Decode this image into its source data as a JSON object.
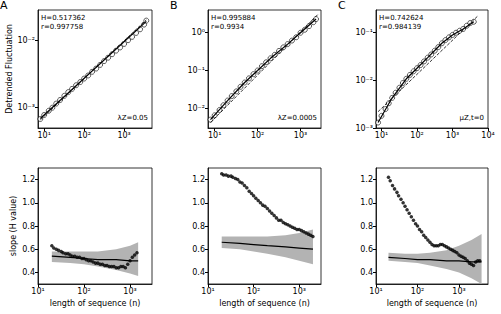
{
  "chart_data": [
    {
      "type": "scatter",
      "title": "A",
      "ylabel": "Detrended Fluctuation",
      "annotations": {
        "top_left": [
          "H=0.517362",
          "r=0.997758"
        ],
        "bottom_right": "λZ=0.05"
      },
      "log": true,
      "grid": false,
      "xlim": [
        7,
        5000
      ],
      "ylim": [
        0.0005,
        0.028
      ],
      "xticks": [
        {
          "value": 10,
          "label": "10¹"
        },
        {
          "value": 100,
          "label": "10²"
        },
        {
          "value": 1000,
          "label": "10³"
        }
      ],
      "yticks": [
        {
          "value": 0.001,
          "label": "10⁻³"
        },
        {
          "value": 0.01,
          "label": "10⁻²"
        }
      ],
      "series": [
        {
          "type": "line",
          "line_style": "dashed",
          "color": "#000000",
          "x": [
            8,
            3600
          ],
          "values": [
            0.00066,
            0.02
          ]
        },
        {
          "type": "line",
          "line_style": "solid",
          "color": "#000000",
          "x": [
            8,
            3600
          ],
          "values": [
            0.00069,
            0.019
          ]
        },
        {
          "type": "scatter",
          "marker": "circle_open",
          "color": "#000000",
          "x": [
            8,
            10,
            13,
            16,
            20,
            25,
            32,
            40,
            50,
            63,
            80,
            100,
            126,
            158,
            200,
            251,
            316,
            398,
            501,
            631,
            794,
            1000,
            1259,
            1585,
            1995,
            2512,
            3162,
            3600
          ],
          "values": [
            0.00068,
            0.00078,
            0.0009,
            0.001,
            0.00115,
            0.0013,
            0.0015,
            0.0017,
            0.0019,
            0.00215,
            0.0024,
            0.0027,
            0.003,
            0.0034,
            0.0038,
            0.0043,
            0.0049,
            0.0055,
            0.0062,
            0.007,
            0.0078,
            0.0088,
            0.01,
            0.0112,
            0.0128,
            0.0145,
            0.017,
            0.0195
          ]
        }
      ]
    },
    {
      "type": "scatter",
      "title": "B",
      "annotations": {
        "top_left": [
          "H=0.995884",
          "r=0.9934"
        ],
        "bottom_right": "λZ=0.0005"
      },
      "log": true,
      "grid": false,
      "xlim": [
        7,
        3000
      ],
      "ylim": [
        0.003,
        4
      ],
      "xticks": [
        {
          "value": 10,
          "label": "10¹"
        },
        {
          "value": 100,
          "label": "10²"
        },
        {
          "value": 1000,
          "label": "10³"
        }
      ],
      "yticks": [
        {
          "value": 0.01,
          "label": "10⁻²"
        },
        {
          "value": 0.1,
          "label": "10⁻¹"
        },
        {
          "value": 1,
          "label": "10⁰"
        }
      ],
      "series": [
        {
          "type": "line",
          "line_style": "dashed",
          "color": "#000000",
          "x": [
            8,
            2500
          ],
          "values": [
            0.0042,
            3.0
          ]
        },
        {
          "type": "line",
          "line_style": "solid",
          "color": "#000000",
          "x": [
            8,
            20,
            50,
            100,
            200,
            501,
            1000,
            2300
          ],
          "values": [
            0.005,
            0.016,
            0.048,
            0.1,
            0.21,
            0.5,
            1.0,
            2.3
          ]
        },
        {
          "type": "scatter",
          "marker": "circle_open",
          "color": "#000000",
          "x": [
            8,
            10,
            13,
            16,
            20,
            25,
            32,
            40,
            50,
            63,
            80,
            100,
            126,
            158,
            200,
            251,
            316,
            398,
            501,
            631,
            794,
            1000,
            1259,
            1585,
            1995,
            2300
          ],
          "values": [
            0.005,
            0.0065,
            0.009,
            0.012,
            0.016,
            0.021,
            0.028,
            0.037,
            0.048,
            0.062,
            0.08,
            0.1,
            0.13,
            0.165,
            0.21,
            0.26,
            0.33,
            0.41,
            0.5,
            0.62,
            0.76,
            1.0,
            1.2,
            1.5,
            1.9,
            2.3
          ]
        }
      ]
    },
    {
      "type": "scatter",
      "title": "C",
      "annotations": {
        "top_left": [
          "H=0.742624",
          "r=0.984139"
        ],
        "bottom_right": "μZ,t=0"
      },
      "log": true,
      "grid": false,
      "xlim": [
        7,
        10000
      ],
      "ylim": [
        0.001,
        0.3
      ],
      "xticks": [
        {
          "value": 10,
          "label": "10¹"
        },
        {
          "value": 100,
          "label": "10²"
        },
        {
          "value": 1000,
          "label": "10³"
        },
        {
          "value": 10000,
          "label": "10⁴"
        }
      ],
      "yticks": [
        {
          "value": 0.001,
          "label": "10⁻³"
        },
        {
          "value": 0.01,
          "label": "10⁻²"
        },
        {
          "value": 0.1,
          "label": "10⁻¹"
        }
      ],
      "series": [
        {
          "type": "line",
          "line_style": "dashed",
          "color": "#000000",
          "x": [
            8,
            5000
          ],
          "values": [
            0.0022,
            0.22
          ]
        },
        {
          "type": "line",
          "line_style": "solid",
          "color": "#000000",
          "x": [
            8,
            20,
            50,
            100,
            200,
            501,
            1000,
            1995,
            3981
          ],
          "values": [
            0.0013,
            0.0043,
            0.0108,
            0.018,
            0.03,
            0.06,
            0.09,
            0.12,
            0.17
          ]
        },
        {
          "type": "scatter",
          "marker": "circle_open",
          "color": "#000000",
          "x": [
            8,
            10,
            13,
            16,
            20,
            25,
            32,
            40,
            50,
            63,
            80,
            100,
            126,
            158,
            200,
            251,
            316,
            398,
            501,
            631,
            794,
            1000,
            1259,
            1585,
            1995,
            2512,
            3162,
            3981
          ],
          "values": [
            0.0013,
            0.0018,
            0.0025,
            0.0033,
            0.0043,
            0.0055,
            0.007,
            0.0088,
            0.0108,
            0.013,
            0.0155,
            0.018,
            0.021,
            0.025,
            0.03,
            0.035,
            0.042,
            0.05,
            0.06,
            0.07,
            0.08,
            0.09,
            0.1,
            0.11,
            0.12,
            0.14,
            0.16,
            0.17
          ]
        }
      ]
    },
    {
      "type": "scatter",
      "xlabel": "length of sequence (n)",
      "ylabel": "slope (H value)",
      "log": "x",
      "grid": false,
      "xlim": [
        10,
        3000
      ],
      "ylim": [
        0.3,
        1.3
      ],
      "xticks": [
        {
          "value": 10,
          "label": "10¹"
        },
        {
          "value": 100,
          "label": "10²"
        },
        {
          "value": 1000,
          "label": "10³"
        }
      ],
      "yticks": [
        0.4,
        0.6,
        0.8,
        {
          "value": 1,
          "label": "1.0"
        },
        1.2
      ],
      "series": [
        {
          "type": "band",
          "color": "#b3b3b3",
          "x": [
            20,
            50,
            100,
            200,
            500,
            1000,
            1500
          ],
          "lower": [
            0.49,
            0.48,
            0.47,
            0.45,
            0.42,
            0.39,
            0.37
          ],
          "upper": [
            0.58,
            0.58,
            0.58,
            0.58,
            0.6,
            0.63,
            0.66
          ]
        },
        {
          "type": "line",
          "line_style": "solid",
          "color": "#000000",
          "x": [
            20,
            50,
            100,
            200,
            500,
            1000,
            1500
          ],
          "values": [
            0.54,
            0.53,
            0.52,
            0.51,
            0.51,
            0.5,
            0.5
          ]
        },
        {
          "type": "scatter",
          "marker": "circle",
          "color": "#000000",
          "x": [
            20,
            22,
            25,
            28,
            32,
            35,
            40,
            45,
            50,
            56,
            63,
            71,
            80,
            90,
            100,
            112,
            126,
            141,
            158,
            178,
            200,
            224,
            251,
            282,
            316,
            355,
            398,
            447,
            501,
            562,
            631,
            708,
            794,
            891,
            1000,
            1122,
            1259,
            1413
          ],
          "values": [
            0.63,
            0.61,
            0.6,
            0.59,
            0.58,
            0.57,
            0.56,
            0.56,
            0.55,
            0.54,
            0.54,
            0.53,
            0.53,
            0.52,
            0.52,
            0.51,
            0.5,
            0.5,
            0.49,
            0.48,
            0.48,
            0.47,
            0.47,
            0.46,
            0.46,
            0.45,
            0.45,
            0.45,
            0.44,
            0.44,
            0.45,
            0.45,
            0.44,
            0.47,
            0.5,
            0.53,
            0.55,
            0.57
          ]
        }
      ]
    },
    {
      "type": "scatter",
      "xlabel": "length of sequence (n)",
      "log": "x",
      "grid": false,
      "xlim": [
        10,
        3000
      ],
      "ylim": [
        0.3,
        1.3
      ],
      "xticks": [
        {
          "value": 10,
          "label": "10¹"
        },
        {
          "value": 100,
          "label": "10²"
        },
        {
          "value": 1000,
          "label": "10³"
        }
      ],
      "yticks": [
        0.4,
        0.6,
        0.8,
        {
          "value": 1,
          "label": "1.0"
        },
        1.2
      ],
      "series": [
        {
          "type": "band",
          "color": "#b3b3b3",
          "x": [
            20,
            50,
            100,
            200,
            500,
            1000,
            2000
          ],
          "lower": [
            0.61,
            0.6,
            0.58,
            0.56,
            0.53,
            0.5,
            0.47
          ],
          "upper": [
            0.71,
            0.71,
            0.71,
            0.71,
            0.72,
            0.74,
            0.77
          ]
        },
        {
          "type": "line",
          "line_style": "solid",
          "color": "#000000",
          "x": [
            20,
            50,
            100,
            200,
            500,
            1000,
            2000
          ],
          "values": [
            0.66,
            0.65,
            0.64,
            0.63,
            0.62,
            0.61,
            0.6
          ]
        },
        {
          "type": "scatter",
          "marker": "circle",
          "color": "#000000",
          "x": [
            20,
            22,
            25,
            28,
            32,
            35,
            40,
            45,
            50,
            56,
            63,
            71,
            80,
            90,
            100,
            112,
            126,
            141,
            158,
            178,
            200,
            224,
            251,
            282,
            316,
            355,
            398,
            447,
            501,
            562,
            631,
            708,
            794,
            891,
            1000,
            1122,
            1259,
            1413,
            1585,
            1778,
            1995
          ],
          "values": [
            1.25,
            1.24,
            1.24,
            1.23,
            1.23,
            1.22,
            1.21,
            1.2,
            1.18,
            1.17,
            1.15,
            1.13,
            1.1,
            1.08,
            1.06,
            1.04,
            1.02,
            1.0,
            0.98,
            0.97,
            0.95,
            0.93,
            0.91,
            0.89,
            0.87,
            0.85,
            0.85,
            0.83,
            0.82,
            0.81,
            0.8,
            0.79,
            0.78,
            0.77,
            0.77,
            0.76,
            0.75,
            0.74,
            0.73,
            0.72,
            0.71
          ]
        }
      ]
    },
    {
      "type": "scatter",
      "xlabel": "length of sequence (n)",
      "log": "x",
      "grid": false,
      "xlim": [
        10,
        5000
      ],
      "ylim": [
        0.3,
        1.3
      ],
      "xticks": [
        {
          "value": 10,
          "label": "10¹"
        },
        {
          "value": 100,
          "label": "10²"
        },
        {
          "value": 1000,
          "label": "10³"
        }
      ],
      "yticks": [
        0.4,
        0.6,
        0.8,
        {
          "value": 1,
          "label": "1.0"
        },
        1.2
      ],
      "series": [
        {
          "type": "band",
          "color": "#b3b3b3",
          "x": [
            20,
            50,
            100,
            200,
            500,
            1000,
            2000,
            3500
          ],
          "lower": [
            0.5,
            0.49,
            0.48,
            0.46,
            0.43,
            0.4,
            0.35,
            0.3
          ],
          "upper": [
            0.57,
            0.56,
            0.56,
            0.57,
            0.59,
            0.63,
            0.68,
            0.73
          ]
        },
        {
          "type": "line",
          "line_style": "solid",
          "color": "#000000",
          "x": [
            20,
            50,
            100,
            200,
            500,
            1000,
            2000,
            3500
          ],
          "values": [
            0.53,
            0.52,
            0.51,
            0.51,
            0.5,
            0.5,
            0.49,
            0.49
          ]
        },
        {
          "type": "scatter",
          "marker": "circle",
          "color": "#000000",
          "x": [
            20,
            22,
            25,
            28,
            32,
            35,
            40,
            45,
            50,
            56,
            63,
            71,
            80,
            90,
            100,
            112,
            126,
            141,
            158,
            178,
            200,
            224,
            251,
            282,
            316,
            355,
            398,
            447,
            501,
            562,
            631,
            708,
            794,
            891,
            1000,
            1122,
            1259,
            1413,
            1585,
            1778,
            1995,
            2239,
            2512,
            2818,
            3162
          ],
          "values": [
            1.22,
            1.19,
            1.15,
            1.12,
            1.09,
            1.06,
            1.03,
            1.0,
            0.97,
            0.94,
            0.91,
            0.88,
            0.85,
            0.82,
            0.8,
            0.77,
            0.75,
            0.72,
            0.7,
            0.68,
            0.66,
            0.64,
            0.63,
            0.63,
            0.63,
            0.64,
            0.64,
            0.63,
            0.62,
            0.61,
            0.6,
            0.59,
            0.58,
            0.57,
            0.55,
            0.54,
            0.53,
            0.52,
            0.5,
            0.48,
            0.47,
            0.46,
            0.49,
            0.5,
            0.5
          ]
        }
      ]
    }
  ]
}
